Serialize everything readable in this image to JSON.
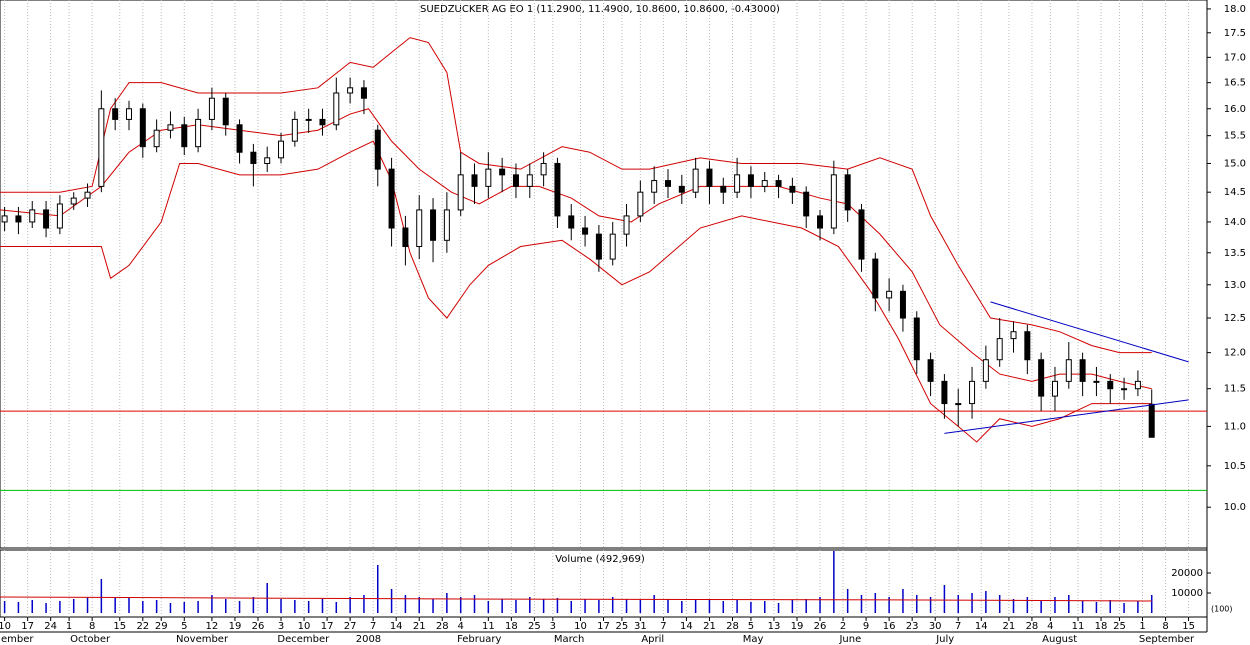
{
  "chart_data": {
    "type": "candlestick",
    "title": "SUEDZUCKER AG  EO 1 (11.2900, 11.4900, 10.8600, 10.8600, -0.43000)",
    "log_scale": true,
    "grid": true,
    "xlim": [
      0,
      262
    ],
    "ylim": [
      9.53,
      18.19
    ],
    "yticks": [
      {
        "value": 18,
        "label": "18.0"
      },
      17.5,
      {
        "value": 17,
        "label": "17.0"
      },
      16.5,
      {
        "value": 16,
        "label": "16.0"
      },
      15.5,
      {
        "value": 15,
        "label": "15.0"
      },
      14.5,
      {
        "value": 14,
        "label": "14.0"
      },
      13.5,
      {
        "value": 13,
        "label": "13.0"
      },
      12.5,
      {
        "value": 12,
        "label": "12.0"
      },
      11.5,
      {
        "value": 11,
        "label": "11.0"
      },
      10.5,
      {
        "value": 10,
        "label": "10.0"
      }
    ],
    "xticks": [
      {
        "value": 1,
        "label": "10"
      },
      {
        "value": 6,
        "label": "17"
      },
      {
        "value": 11,
        "label": "24"
      },
      {
        "value": 15,
        "label": "1"
      },
      {
        "value": 20,
        "label": "8"
      },
      {
        "value": 26,
        "label": "15"
      },
      {
        "value": 31,
        "label": "22"
      },
      {
        "value": 35,
        "label": "29"
      },
      {
        "value": 40,
        "label": "5"
      },
      {
        "value": 46,
        "label": "12"
      },
      {
        "value": 51,
        "label": "19"
      },
      {
        "value": 56,
        "label": "26"
      },
      {
        "value": 61,
        "label": "3"
      },
      {
        "value": 66,
        "label": "10"
      },
      {
        "value": 71,
        "label": "17"
      },
      {
        "value": 76,
        "label": "27"
      },
      {
        "value": 81,
        "label": "7"
      },
      {
        "value": 86,
        "label": "14"
      },
      {
        "value": 91,
        "label": "21"
      },
      {
        "value": 96,
        "label": "28"
      },
      {
        "value": 100,
        "label": "4"
      },
      {
        "value": 106,
        "label": "11"
      },
      {
        "value": 111,
        "label": "18"
      },
      {
        "value": 116,
        "label": "25"
      },
      {
        "value": 120,
        "label": "3"
      },
      {
        "value": 126,
        "label": "10"
      },
      {
        "value": 131,
        "label": "17"
      },
      {
        "value": 135,
        "label": "25"
      },
      {
        "value": 139,
        "label": "31"
      },
      {
        "value": 144,
        "label": "7"
      },
      {
        "value": 149,
        "label": "14"
      },
      {
        "value": 154,
        "label": "21"
      },
      {
        "value": 159,
        "label": "28"
      },
      {
        "value": 163,
        "label": "5"
      },
      {
        "value": 168,
        "label": "13"
      },
      {
        "value": 173,
        "label": "19"
      },
      {
        "value": 178,
        "label": "26"
      },
      {
        "value": 183,
        "label": "2"
      },
      {
        "value": 188,
        "label": "9"
      },
      {
        "value": 193,
        "label": "16"
      },
      {
        "value": 198,
        "label": "23"
      },
      {
        "value": 203,
        "label": "30"
      },
      {
        "value": 208,
        "label": "7"
      },
      {
        "value": 213,
        "label": "14"
      },
      {
        "value": 219,
        "label": "21"
      },
      {
        "value": 224,
        "label": "28"
      },
      {
        "value": 228,
        "label": "4"
      },
      {
        "value": 234,
        "label": "11"
      },
      {
        "value": 239,
        "label": "18"
      },
      {
        "value": 243,
        "label": "25"
      },
      {
        "value": 248,
        "label": "1"
      },
      {
        "value": 253,
        "label": "8"
      },
      {
        "value": 258,
        "label": "15"
      }
    ],
    "month_labels": [
      {
        "value": 0,
        "label": "ember"
      },
      {
        "value": 15,
        "label": "October"
      },
      {
        "value": 38,
        "label": "November"
      },
      {
        "value": 60,
        "label": "December"
      },
      {
        "value": 77,
        "label": "2008"
      },
      {
        "value": 99,
        "label": "February"
      },
      {
        "value": 120,
        "label": "March"
      },
      {
        "value": 139,
        "label": "April"
      },
      {
        "value": 161,
        "label": "May"
      },
      {
        "value": 182,
        "label": "June"
      },
      {
        "value": 203,
        "label": "July"
      },
      {
        "value": 226,
        "label": "August"
      },
      {
        "value": 247,
        "label": "September"
      }
    ],
    "candles": {
      "x": [
        1,
        4,
        7,
        10,
        13,
        16,
        19,
        22,
        25,
        28,
        31,
        34,
        37,
        40,
        43,
        46,
        49,
        52,
        55,
        58,
        61,
        64,
        67,
        70,
        73,
        76,
        79,
        82,
        85,
        88,
        91,
        94,
        97,
        100,
        103,
        106,
        109,
        112,
        115,
        118,
        121,
        124,
        127,
        130,
        133,
        136,
        139,
        142,
        145,
        148,
        151,
        154,
        157,
        160,
        163,
        166,
        169,
        172,
        175,
        178,
        181,
        184,
        187,
        190,
        193,
        196,
        199,
        202,
        205,
        208,
        211,
        214,
        217,
        220,
        223,
        226,
        229,
        232,
        235,
        238,
        241,
        244,
        247,
        250
      ],
      "open": [
        14.0,
        14.1,
        14.0,
        14.2,
        13.9,
        14.3,
        14.4,
        14.6,
        16.0,
        15.8,
        16.0,
        15.3,
        15.6,
        15.7,
        15.3,
        15.8,
        16.2,
        15.7,
        15.2,
        15.0,
        15.1,
        15.4,
        15.8,
        15.8,
        15.7,
        16.3,
        16.4,
        15.6,
        14.9,
        13.9,
        13.6,
        14.2,
        13.7,
        14.2,
        14.8,
        14.6,
        14.9,
        14.8,
        14.6,
        14.8,
        15.0,
        14.1,
        13.9,
        13.8,
        13.4,
        13.8,
        14.1,
        14.5,
        14.7,
        14.6,
        14.5,
        14.9,
        14.6,
        14.5,
        14.8,
        14.6,
        14.7,
        14.6,
        14.5,
        14.1,
        13.9,
        14.8,
        14.2,
        13.4,
        12.8,
        12.9,
        12.5,
        11.9,
        11.6,
        11.3,
        11.3,
        11.6,
        11.9,
        12.2,
        12.3,
        11.9,
        11.4,
        11.6,
        11.9,
        11.6,
        11.6,
        11.5,
        11.5,
        11.29
      ],
      "high": [
        14.25,
        14.25,
        14.35,
        14.35,
        14.45,
        14.5,
        14.65,
        16.35,
        16.2,
        16.15,
        16.1,
        15.8,
        15.95,
        15.85,
        16.0,
        16.4,
        16.3,
        15.8,
        15.35,
        15.3,
        15.55,
        15.95,
        16.0,
        16.0,
        16.6,
        16.6,
        16.55,
        15.7,
        15.1,
        14.1,
        14.45,
        14.4,
        14.5,
        15.2,
        15.0,
        15.2,
        15.1,
        15.0,
        15.0,
        15.2,
        15.1,
        14.3,
        14.1,
        13.95,
        14.0,
        14.3,
        14.7,
        14.95,
        14.9,
        14.8,
        15.1,
        15.05,
        14.75,
        15.1,
        14.95,
        14.85,
        14.8,
        14.75,
        14.6,
        14.2,
        15.05,
        14.9,
        14.3,
        13.5,
        13.1,
        13.0,
        12.6,
        12.0,
        11.7,
        11.5,
        11.8,
        12.1,
        12.5,
        12.45,
        12.4,
        12.0,
        11.8,
        12.15,
        12.0,
        11.8,
        11.7,
        11.65,
        11.75,
        11.49
      ],
      "low": [
        13.85,
        13.8,
        13.9,
        13.75,
        13.8,
        14.2,
        14.25,
        14.5,
        15.6,
        15.6,
        15.1,
        15.2,
        15.45,
        15.15,
        15.2,
        15.6,
        15.5,
        15.0,
        14.6,
        14.85,
        15.0,
        15.3,
        15.55,
        15.5,
        15.6,
        16.1,
        15.9,
        14.6,
        13.6,
        13.3,
        13.4,
        13.35,
        13.5,
        14.1,
        14.3,
        14.4,
        14.5,
        14.4,
        14.4,
        14.6,
        13.9,
        13.7,
        13.6,
        13.2,
        13.3,
        13.6,
        14.0,
        14.3,
        14.4,
        14.3,
        14.4,
        14.3,
        14.3,
        14.4,
        14.4,
        14.5,
        14.4,
        14.3,
        13.9,
        13.7,
        13.8,
        14.0,
        13.2,
        12.6,
        12.6,
        12.3,
        11.7,
        11.4,
        11.1,
        11.0,
        11.1,
        11.5,
        11.8,
        12.0,
        11.7,
        11.2,
        11.2,
        11.5,
        11.4,
        11.4,
        11.3,
        11.35,
        11.4,
        10.86
      ],
      "close": [
        14.1,
        14.0,
        14.2,
        13.9,
        14.3,
        14.4,
        14.5,
        16.0,
        15.8,
        16.0,
        15.3,
        15.6,
        15.7,
        15.3,
        15.8,
        16.2,
        15.7,
        15.2,
        15.0,
        15.1,
        15.4,
        15.8,
        15.8,
        15.7,
        16.3,
        16.4,
        16.2,
        14.9,
        13.9,
        13.6,
        14.2,
        13.7,
        14.2,
        14.8,
        14.6,
        14.9,
        14.8,
        14.6,
        14.8,
        15.0,
        14.1,
        13.9,
        13.8,
        13.4,
        13.8,
        14.1,
        14.5,
        14.7,
        14.6,
        14.5,
        14.9,
        14.6,
        14.5,
        14.8,
        14.6,
        14.7,
        14.6,
        14.5,
        14.1,
        13.9,
        14.8,
        14.2,
        13.4,
        12.8,
        12.9,
        12.5,
        11.9,
        11.6,
        11.3,
        11.3,
        11.6,
        11.9,
        12.2,
        12.3,
        11.9,
        11.4,
        11.6,
        11.9,
        11.6,
        11.6,
        11.5,
        11.5,
        11.6,
        10.86
      ]
    },
    "bands": [
      {
        "color": "#d00000",
        "x": [
          0,
          13,
          22,
          28,
          35,
          43,
          52,
          61,
          69,
          76,
          80,
          85,
          91,
          98,
          104,
          111,
          117,
          124,
          130,
          137,
          143,
          152,
          161,
          169,
          178,
          184,
          191,
          198,
          204,
          211,
          217,
          224,
          230,
          237,
          243,
          250
        ],
        "values": [
          14.2,
          14.1,
          14.6,
          15.2,
          15.6,
          15.7,
          15.6,
          15.5,
          15.6,
          15.9,
          16.0,
          15.4,
          14.9,
          14.5,
          14.3,
          14.6,
          14.6,
          14.4,
          14.1,
          14.0,
          14.3,
          14.6,
          14.6,
          14.6,
          14.4,
          14.3,
          13.8,
          13.2,
          12.4,
          12.0,
          11.7,
          11.6,
          11.7,
          11.7,
          11.6,
          11.5
        ]
      },
      {
        "color": "#d00000",
        "x": [
          0,
          13,
          20,
          24,
          28,
          35,
          43,
          52,
          61,
          69,
          76,
          81,
          85,
          89,
          93,
          97,
          100,
          104,
          113,
          122,
          128,
          135,
          141,
          152,
          161,
          174,
          184,
          191,
          198,
          202,
          208,
          215,
          224,
          230,
          237,
          243,
          250
        ],
        "values": [
          14.5,
          14.5,
          14.6,
          16.0,
          16.5,
          16.5,
          16.3,
          16.3,
          16.3,
          16.4,
          16.9,
          16.8,
          17.1,
          17.4,
          17.3,
          16.7,
          15.2,
          15.0,
          14.9,
          15.3,
          15.2,
          14.9,
          14.9,
          15.1,
          15.0,
          15.0,
          14.9,
          15.1,
          14.9,
          14.1,
          13.3,
          12.5,
          12.4,
          12.3,
          12.1,
          12.0,
          12.0
        ]
      },
      {
        "color": "#d00000",
        "x": [
          0,
          13,
          22,
          24,
          28,
          35,
          39,
          43,
          52,
          61,
          69,
          76,
          81,
          85,
          89,
          93,
          97,
          102,
          106,
          113,
          122,
          128,
          135,
          141,
          152,
          161,
          174,
          182,
          189,
          195,
          202,
          208,
          212,
          217,
          224,
          230,
          237,
          243,
          250
        ],
        "values": [
          13.6,
          13.6,
          13.6,
          13.1,
          13.3,
          14.0,
          15.0,
          15.0,
          14.8,
          14.8,
          14.9,
          15.2,
          15.4,
          14.7,
          13.5,
          12.8,
          12.5,
          13.0,
          13.3,
          13.6,
          13.7,
          13.4,
          13.0,
          13.2,
          13.9,
          14.1,
          13.9,
          13.6,
          12.9,
          12.2,
          11.3,
          11.0,
          10.8,
          11.1,
          11.0,
          11.1,
          11.3,
          11.3,
          11.3
        ]
      }
    ],
    "hlines": [
      {
        "value": 11.2,
        "color": "#e00000"
      },
      {
        "value": 10.2,
        "color": "#00c000"
      }
    ],
    "trendlines": [
      {
        "color": "#0000c0",
        "x": [
          215,
          258
        ],
        "y": [
          12.74,
          11.87
        ]
      },
      {
        "color": "#0000c0",
        "x": [
          205,
          258
        ],
        "y": [
          10.91,
          11.35
        ]
      }
    ],
    "volume": {
      "title": "Volume (492,969)",
      "unit_label": "(100)",
      "color": "#0000c8",
      "ylim": [
        0,
        31500
      ],
      "yticks": [
        20000,
        10000
      ],
      "values": [
        6000,
        5500,
        6500,
        5000,
        6000,
        7000,
        8000,
        17000,
        8000,
        7500,
        6000,
        6500,
        5000,
        5500,
        6000,
        9000,
        7000,
        6000,
        8000,
        15000,
        7000,
        6500,
        6000,
        7000,
        5500,
        8000,
        9000,
        24000,
        12000,
        9000,
        8000,
        7000,
        10000,
        8000,
        9000,
        6000,
        7000,
        6500,
        8000,
        7000,
        7500,
        6000,
        7000,
        6500,
        8000,
        7000,
        6500,
        9000,
        7000,
        6000,
        6500,
        7000,
        6000,
        6500,
        5500,
        6000,
        5000,
        6500,
        7000,
        8000,
        31000,
        12000,
        9000,
        10000,
        8000,
        12000,
        9000,
        8000,
        14000,
        9000,
        10000,
        11000,
        9000,
        7000,
        8000,
        6500,
        8000,
        9000,
        6000,
        5500,
        6500,
        5000,
        6000,
        9000
      ],
      "average": {
        "color": "#d00000",
        "x": [
          0,
          100,
          200,
          250
        ],
        "values": [
          8000,
          7000,
          6500,
          6000
        ]
      }
    }
  }
}
